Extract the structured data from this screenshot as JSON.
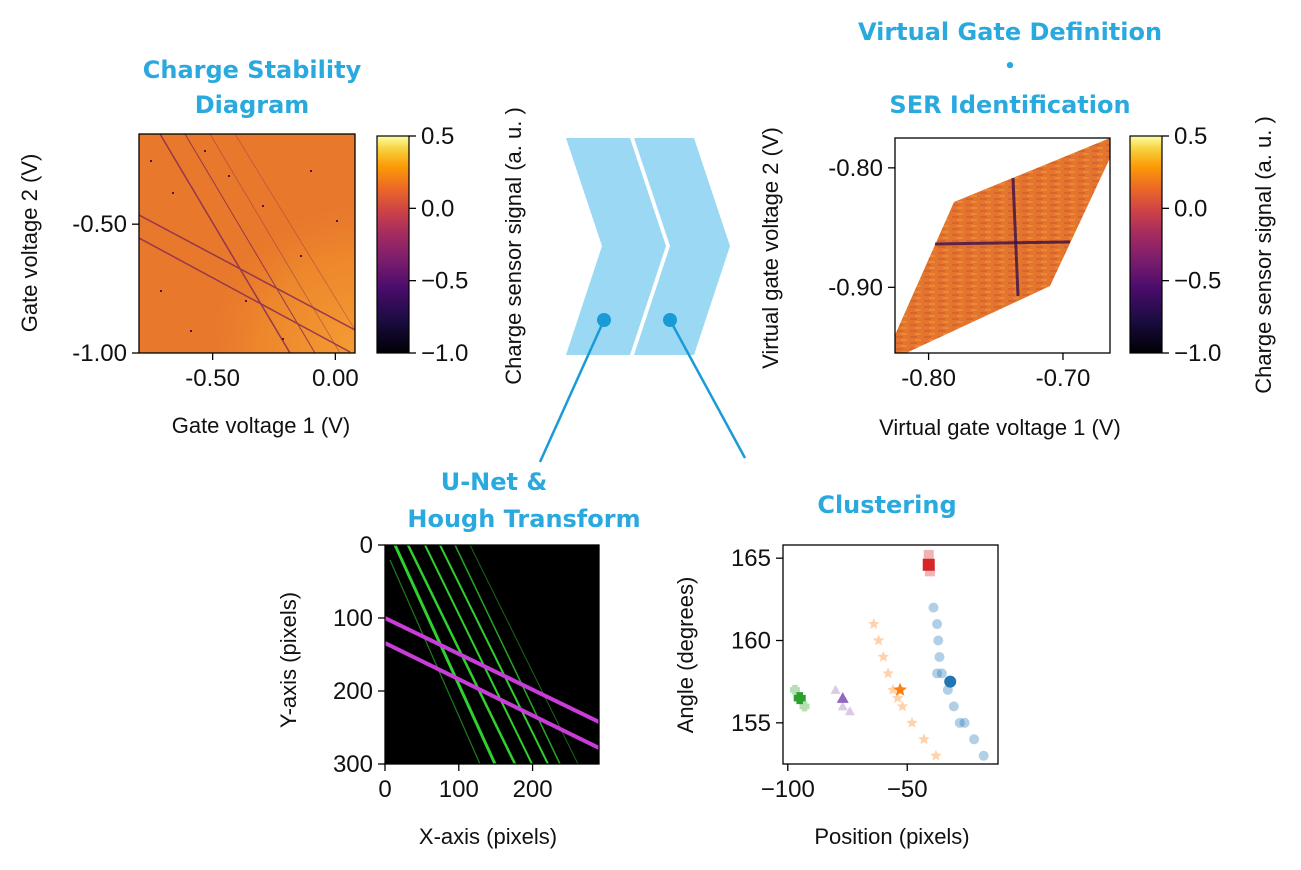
{
  "titles": {
    "stability_line1": "Charge Stability",
    "stability_line2": "Diagram",
    "virtual_line1": "Virtual Gate Definition",
    "virtual_bullet": "•",
    "virtual_line2": "SER Identification",
    "unet_line1": "U-Net &",
    "unet_line2": "Hough Transform",
    "clustering": "Clustering"
  },
  "colors": {
    "title": "#29a9de",
    "arrow": "#9ad8f4",
    "connector": "#1a9ad6"
  },
  "chart_data": [
    {
      "id": "stability",
      "type": "heatmap",
      "xlabel": "Gate voltage 1 (V)",
      "ylabel": "Gate voltage 2 (V)",
      "xlim": [
        -0.8,
        0.08
      ],
      "ylim": [
        -1.0,
        -0.15
      ],
      "xticks": [
        {
          "value": -0.5,
          "label": "-0.50"
        },
        {
          "value": 0.0,
          "label": "0.00"
        }
      ],
      "yticks": [
        {
          "value": -0.5,
          "label": "-0.50"
        },
        {
          "value": -1.0,
          "label": "-1.00"
        }
      ],
      "colorbar": {
        "label": "Charge sensor signal (a. u. )",
        "range": [
          -1.0,
          0.5
        ],
        "ticks": [
          {
            "value": 0.5,
            "label": "0.5"
          },
          {
            "value": 0.0,
            "label": "0.0"
          },
          {
            "value": -0.5,
            "label": "−0.5"
          },
          {
            "value": -1.0,
            "label": "−1.0"
          }
        ]
      }
    },
    {
      "id": "virtual",
      "type": "heatmap",
      "xlabel": "Virtual gate voltage 1 (V)",
      "ylabel": "Virtual gate voltage 2 (V)",
      "xlim": [
        -0.825,
        -0.665
      ],
      "ylim": [
        -0.955,
        -0.775
      ],
      "xticks": [
        {
          "value": -0.8,
          "label": "-0.80"
        },
        {
          "value": -0.7,
          "label": "-0.70"
        }
      ],
      "yticks": [
        {
          "value": -0.8,
          "label": "-0.80"
        },
        {
          "value": -0.9,
          "label": "-0.90"
        }
      ],
      "colorbar": {
        "label": "Charge sensor signal (a. u. )",
        "range": [
          -1.0,
          0.5
        ],
        "ticks": [
          {
            "value": 0.5,
            "label": "0.5"
          },
          {
            "value": 0.0,
            "label": "0.0"
          },
          {
            "value": -0.5,
            "label": "−0.5"
          },
          {
            "value": -1.0,
            "label": "−1.0"
          }
        ]
      }
    },
    {
      "id": "unet",
      "type": "heatmap",
      "xlabel": "X-axis (pixels)",
      "ylabel": "Y-axis (pixels)",
      "xlim": [
        0,
        290
      ],
      "ylim": [
        300,
        0
      ],
      "xticks": [
        {
          "value": 0,
          "label": "0"
        },
        {
          "value": 100,
          "label": "100"
        },
        {
          "value": 200,
          "label": "200"
        }
      ],
      "yticks": [
        {
          "value": 0,
          "label": "0"
        },
        {
          "value": 100,
          "label": "100"
        },
        {
          "value": 200,
          "label": "200"
        },
        {
          "value": 300,
          "label": "300"
        }
      ]
    },
    {
      "id": "clustering",
      "type": "scatter",
      "xlabel": "Position (pixels)",
      "ylabel": "Angle (degrees)",
      "xlim": [
        -102,
        -12
      ],
      "ylim": [
        152.5,
        165.8
      ],
      "xticks": [
        {
          "value": -100,
          "label": "−100"
        },
        {
          "value": -50,
          "label": "−50"
        }
      ],
      "yticks": [
        {
          "value": 165,
          "label": "165"
        },
        {
          "value": 160,
          "label": "160"
        },
        {
          "value": 155,
          "label": "155"
        }
      ],
      "series": [
        {
          "marker": "circle",
          "color": "#1f77b4",
          "points": [
            [
              -39,
              162
            ],
            [
              -37.5,
              161
            ],
            [
              -37,
              160
            ],
            [
              -36.5,
              159
            ],
            [
              -37.5,
              158
            ],
            [
              -35.5,
              158
            ],
            [
              -33,
              157
            ],
            [
              -30.5,
              156
            ],
            [
              -28,
              155
            ],
            [
              -22,
              154
            ],
            [
              -26,
              155
            ],
            [
              -18,
              153
            ]
          ],
          "centroid": [
            -32,
            157.5
          ]
        },
        {
          "marker": "star",
          "color": "#ff7f0e",
          "points": [
            [
              -64,
              161
            ],
            [
              -62,
              160
            ],
            [
              -60,
              159
            ],
            [
              -58,
              158
            ],
            [
              -56,
              157
            ],
            [
              -54,
              156.5
            ],
            [
              -52,
              156
            ],
            [
              -48,
              155
            ],
            [
              -43,
              154
            ],
            [
              -38,
              153
            ]
          ],
          "centroid": [
            -53,
            157
          ]
        },
        {
          "marker": "square",
          "color": "#d62728",
          "points": [
            [
              -41,
              165.2
            ],
            [
              -41,
              164.6
            ],
            [
              -40.5,
              164.2
            ]
          ],
          "centroid": [
            -41,
            164.6
          ]
        },
        {
          "marker": "triangle",
          "color": "#9467bd",
          "points": [
            [
              -80,
              157
            ],
            [
              -77,
              156
            ],
            [
              -74,
              155.7
            ]
          ],
          "centroid": [
            -77,
            156.5
          ]
        },
        {
          "marker": "plus",
          "color": "#2ca02c",
          "points": [
            [
              -97,
              157
            ],
            [
              -93,
              156
            ]
          ],
          "centroid": [
            -95,
            156.5
          ]
        }
      ]
    }
  ]
}
